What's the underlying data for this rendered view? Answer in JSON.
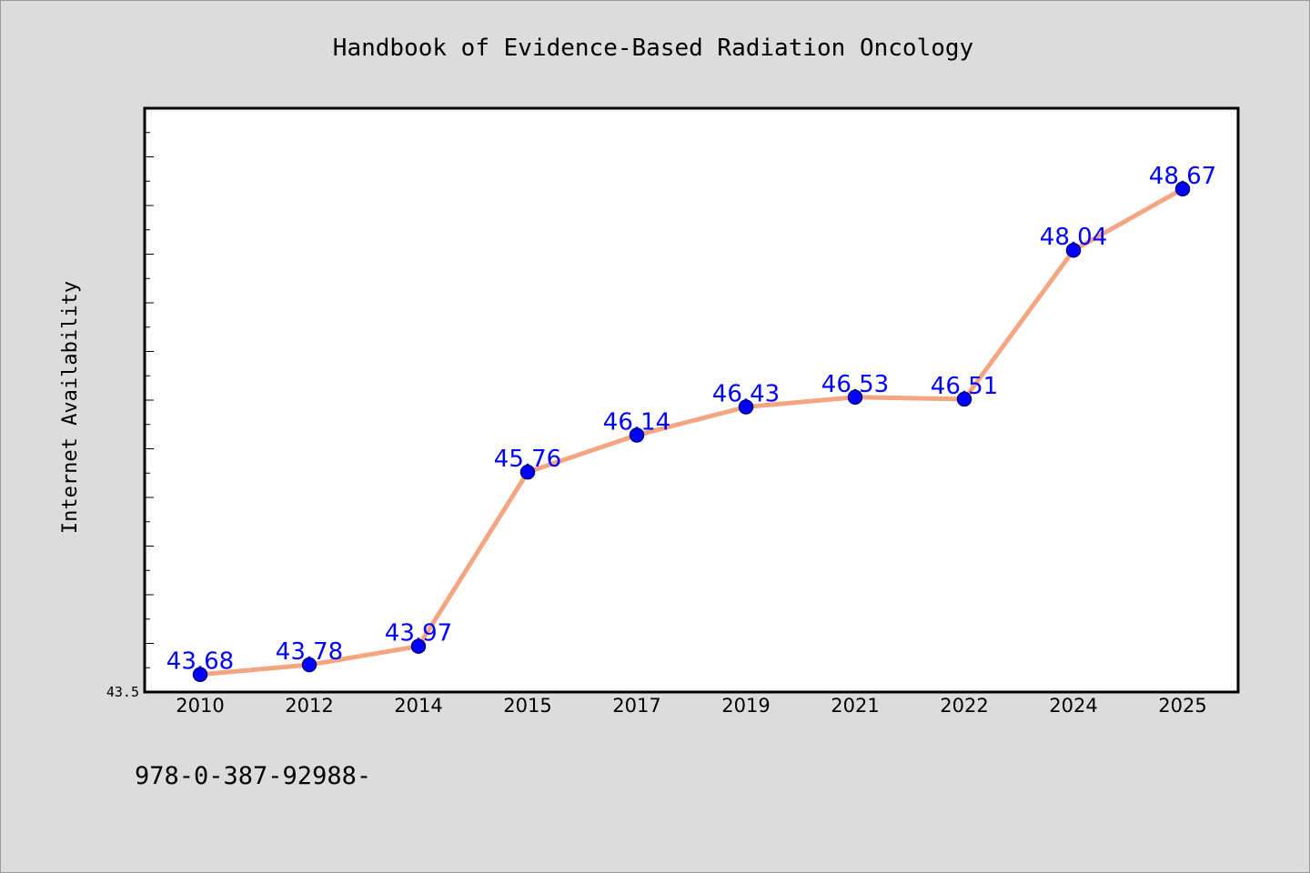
{
  "footer_text": "978-0-387-92988-",
  "colors": {
    "background": "#dcdcdc",
    "plot_background": "#ffffff",
    "line": "#f4a582",
    "marker": "#0000ff",
    "data_label": "#0000ff"
  },
  "chart_data": {
    "type": "line",
    "title": "Handbook of Evidence-Based Radiation Oncology",
    "xlabel": "",
    "ylabel": "Internet Availability",
    "categories": [
      "2010",
      "2012",
      "2014",
      "2015",
      "2017",
      "2019",
      "2021",
      "2022",
      "2024",
      "2025"
    ],
    "series": [
      {
        "values": [
          43.68,
          43.78,
          43.97,
          45.76,
          46.14,
          46.43,
          46.53,
          46.51,
          48.04,
          48.67
        ]
      }
    ],
    "data_labels": [
      "43.68",
      "43.78",
      "43.97",
      "45.76",
      "46.14",
      "46.43",
      "46.53",
      "46.51",
      "48.04",
      "48.67"
    ],
    "ylim": [
      43.5,
      49.5
    ],
    "ytick_labels": [
      "43.5"
    ],
    "grid": false,
    "legend": "none"
  }
}
